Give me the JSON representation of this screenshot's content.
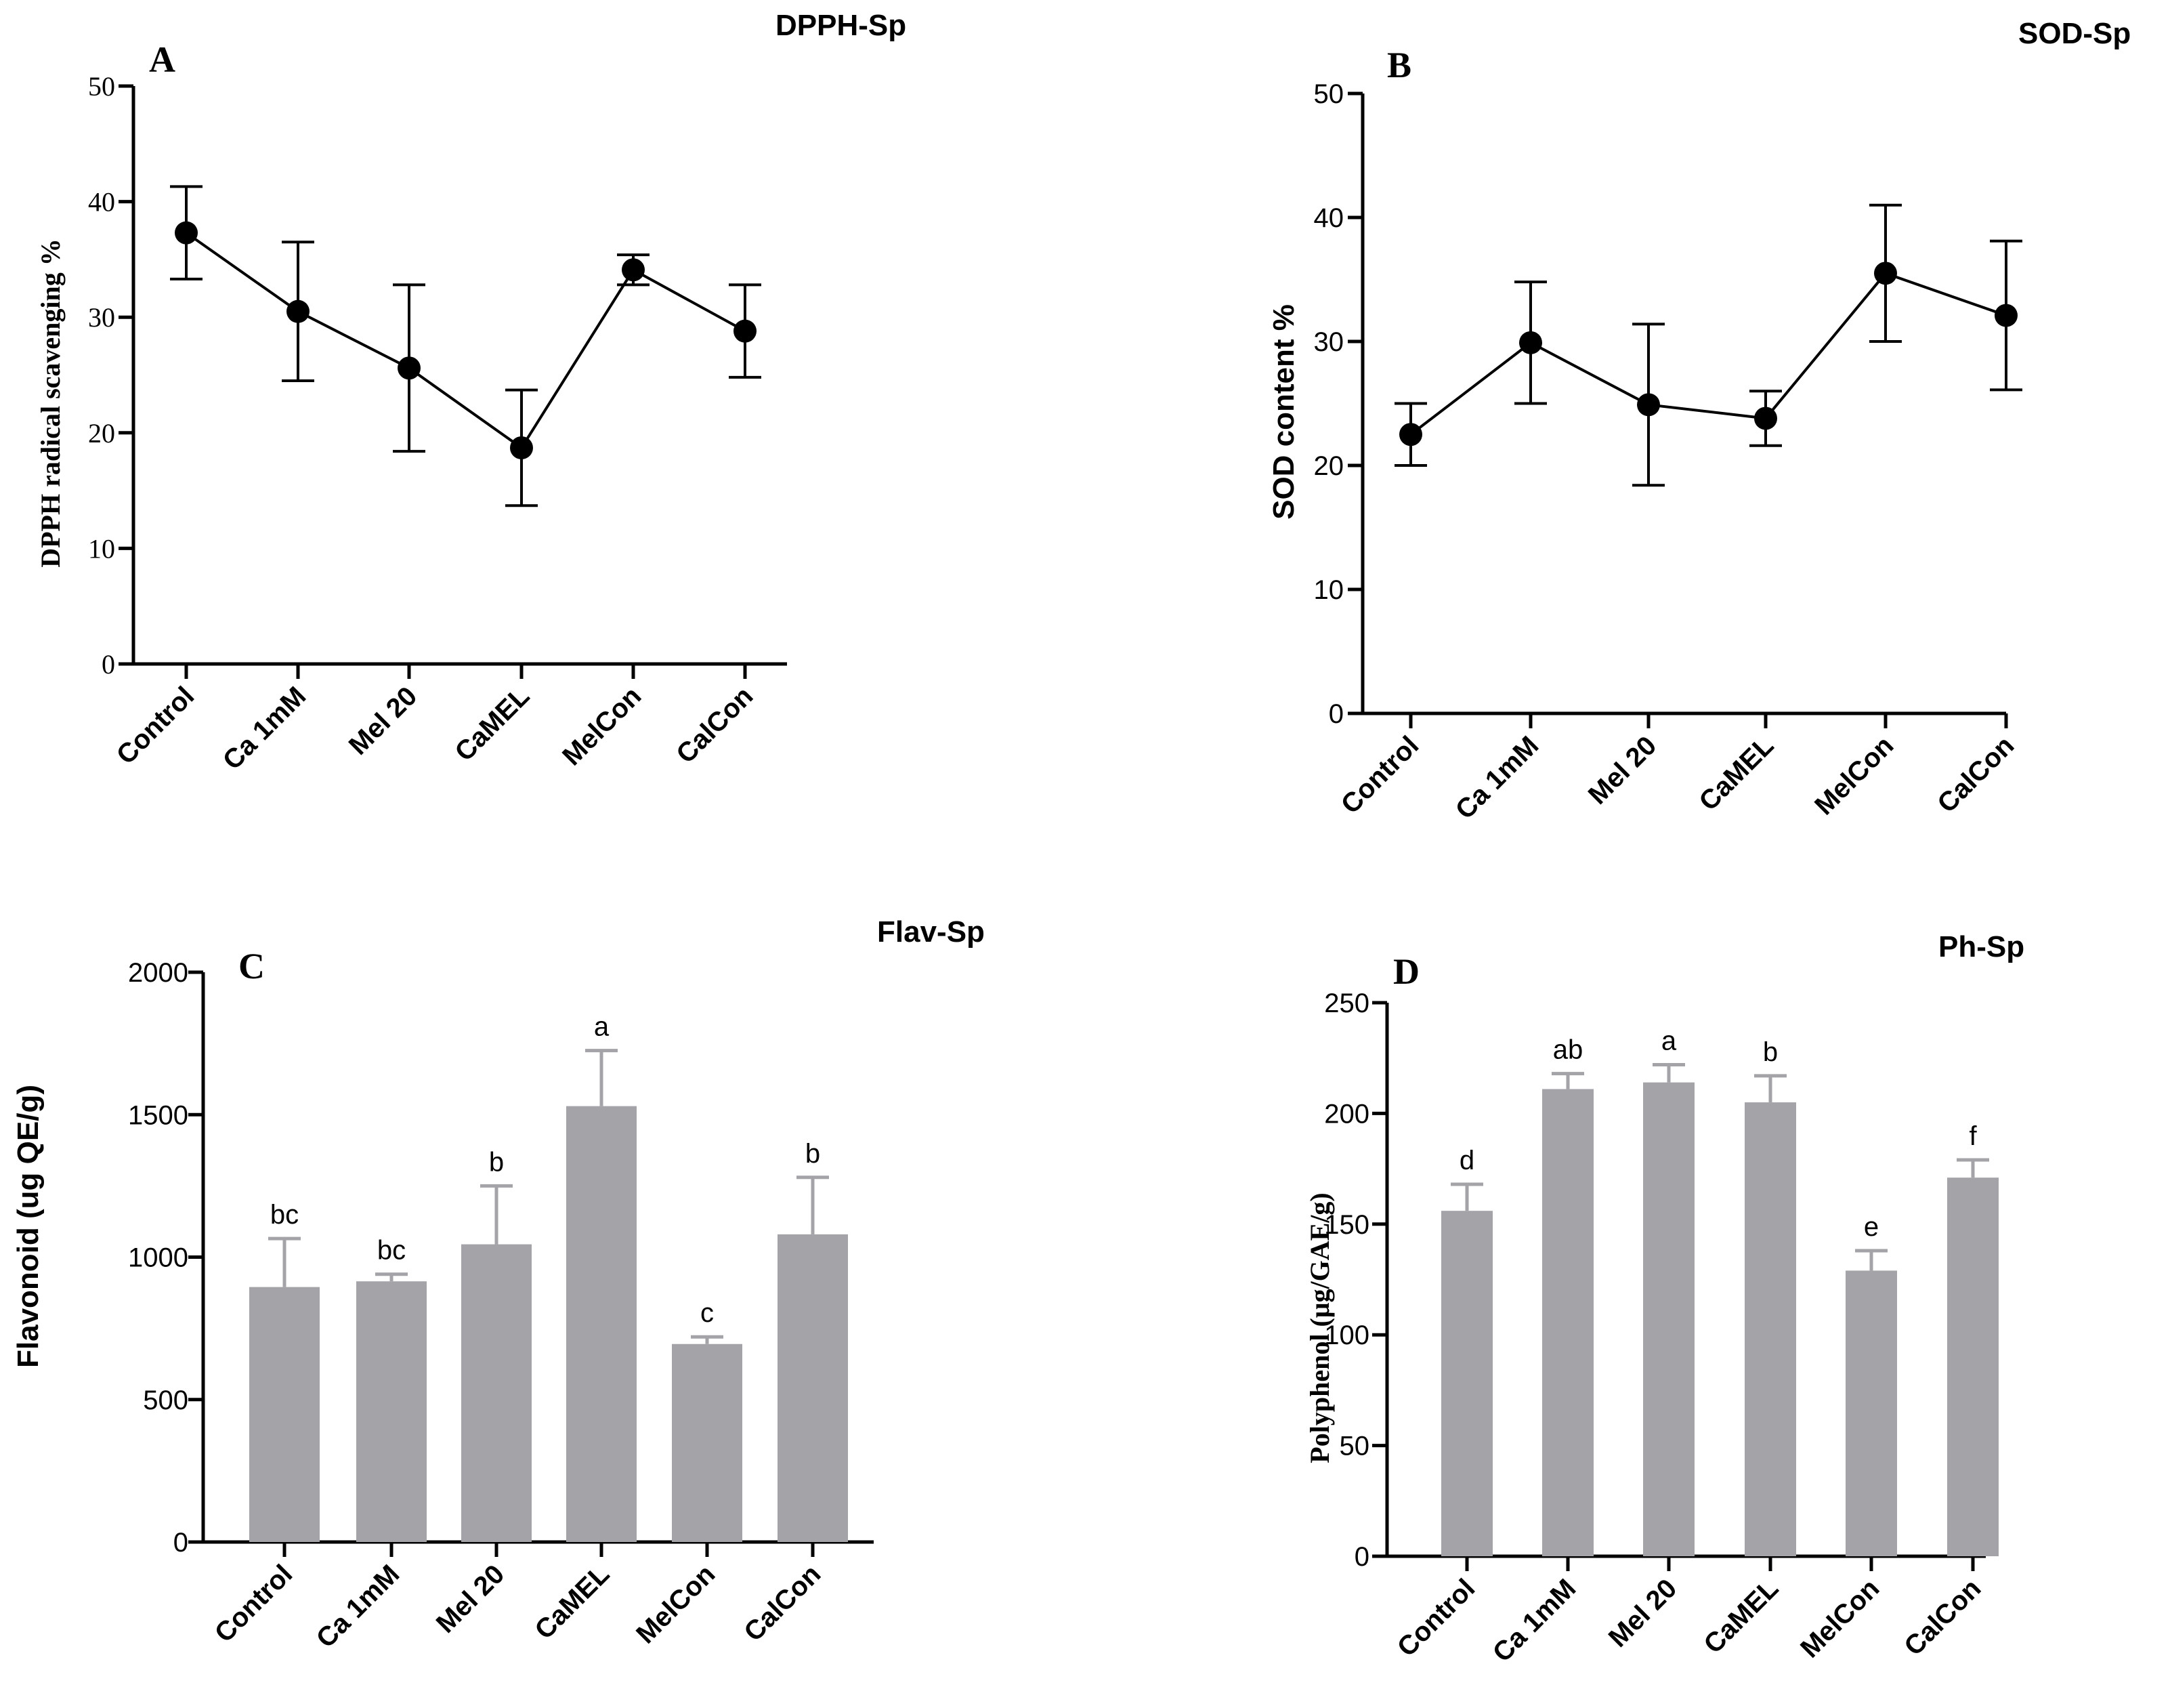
{
  "chart_data": [
    {
      "id": "a",
      "type": "line",
      "panel_label": "A",
      "title": "DPPH-Sp",
      "ylabel": "DPPH radical scavenging %",
      "categories": [
        "Control",
        "Ca 1mM",
        "Mel 20",
        "CaMEL",
        "MelCon",
        "CalCon"
      ],
      "values": [
        37.3,
        30.5,
        25.6,
        18.7,
        34.1,
        28.8
      ],
      "errors": [
        4.0,
        6.0,
        7.2,
        5.0,
        1.3,
        4.0
      ],
      "ylim": [
        0,
        50
      ],
      "yticks": [
        "0",
        "10",
        "20",
        "30",
        "40",
        "50"
      ],
      "colors": {
        "series": "#000000"
      }
    },
    {
      "id": "b",
      "type": "line",
      "panel_label": "B",
      "title": "SOD-Sp",
      "ylabel": "SOD content %",
      "categories": [
        "Control",
        "Ca 1mM",
        "Mel 20",
        "CaMEL",
        "MelCon",
        "CalCon"
      ],
      "values": [
        22.5,
        29.9,
        24.9,
        23.8,
        35.5,
        32.1
      ],
      "errors": [
        2.5,
        4.9,
        6.5,
        2.2,
        5.5,
        6.0
      ],
      "ylim": [
        0,
        50
      ],
      "yticks": [
        "0",
        "10",
        "20",
        "30",
        "40",
        "50"
      ],
      "colors": {
        "series": "#000000"
      }
    },
    {
      "id": "c",
      "type": "bar",
      "panel_label": "C",
      "title": "Flav-Sp",
      "ylabel": "Flavonoid (ug QE/g)",
      "categories": [
        "Control",
        "Ca 1mM",
        "Mel 20",
        "CaMEL",
        "MelCon",
        "CalCon"
      ],
      "values": [
        895,
        915,
        1045,
        1530,
        695,
        1080
      ],
      "errors": [
        170,
        25,
        205,
        195,
        25,
        200
      ],
      "significance": [
        "bc",
        "bc",
        "b",
        "a",
        "c",
        "b"
      ],
      "ylim": [
        0,
        2000
      ],
      "yticks": [
        "0",
        "500",
        "1000",
        "1500",
        "2000"
      ],
      "colors": {
        "bar": "#a3a3a8"
      }
    },
    {
      "id": "d",
      "type": "bar",
      "panel_label": "D",
      "title": "Ph-Sp",
      "ylabel": "Polyphenol (μg/GAE/g)",
      "categories": [
        "Control",
        "Ca 1mM",
        "Mel 20",
        "CaMEL",
        "MelCon",
        "CalCon"
      ],
      "values": [
        156,
        211,
        214,
        205,
        129,
        171
      ],
      "errors": [
        12,
        7,
        8,
        12,
        9,
        8
      ],
      "significance": [
        "d",
        "ab",
        "a",
        "b",
        "e",
        "f"
      ],
      "ylim": [
        0,
        250
      ],
      "yticks": [
        "0",
        "50",
        "100",
        "150",
        "200",
        "250"
      ],
      "colors": {
        "bar": "#a3a3a8"
      }
    }
  ]
}
